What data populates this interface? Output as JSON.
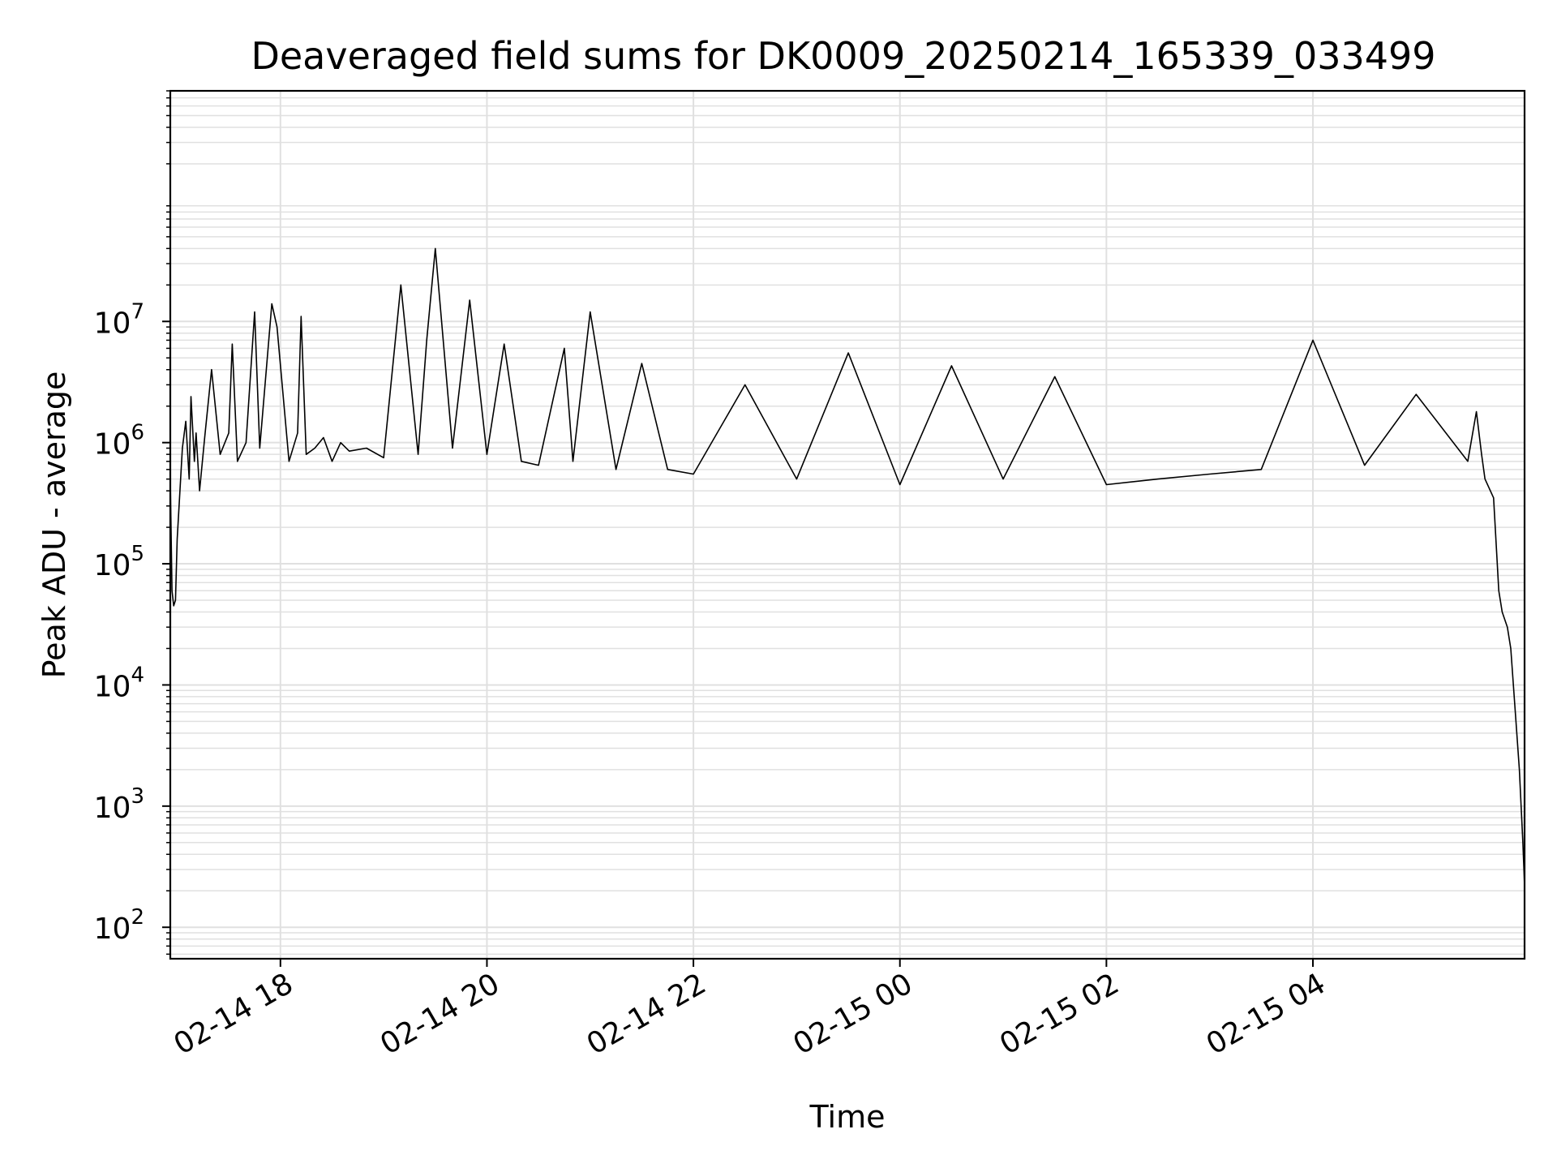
{
  "chart_data": {
    "type": "line",
    "title": "Deaveraged field sums for DK0009_20250214_165339_033499",
    "xlabel": "Time",
    "ylabel": "Peak ADU - average",
    "yscale": "log",
    "ylim": [
      55,
      800000000
    ],
    "xlim": [
      "2025-02-14 16:56",
      "2025-02-15 06:03"
    ],
    "grid": true,
    "line_color": "#000000",
    "grid_color": "#e0e0e0",
    "x_ticks": [
      "2025-02-14 18:00",
      "2025-02-14 20:00",
      "2025-02-14 22:00",
      "2025-02-15 00:00",
      "2025-02-15 02:00",
      "2025-02-15 04:00"
    ],
    "x_tick_labels": [
      "02-14 18",
      "02-14 20",
      "02-14 22",
      "02-15 00",
      "02-15 02",
      "02-15 04"
    ],
    "y_ticks": [
      100,
      1000,
      10000,
      100000,
      1000000,
      10000000
    ],
    "y_tick_labels": [
      {
        "base": "10",
        "exp": "2"
      },
      {
        "base": "10",
        "exp": "3"
      },
      {
        "base": "10",
        "exp": "4"
      },
      {
        "base": "10",
        "exp": "5"
      },
      {
        "base": "10",
        "exp": "6"
      },
      {
        "base": "10",
        "exp": "7"
      }
    ],
    "series": [
      {
        "x": [
          "2025-02-14 16:56",
          "2025-02-14 16:57",
          "2025-02-14 16:58",
          "2025-02-14 16:59",
          "2025-02-14 17:00",
          "2025-02-14 17:03",
          "2025-02-14 17:05",
          "2025-02-14 17:07",
          "2025-02-14 17:08",
          "2025-02-14 17:10",
          "2025-02-14 17:11",
          "2025-02-14 17:13",
          "2025-02-14 17:16",
          "2025-02-14 17:20",
          "2025-02-14 17:25",
          "2025-02-14 17:30",
          "2025-02-14 17:32",
          "2025-02-14 17:35",
          "2025-02-14 17:40",
          "2025-02-14 17:45",
          "2025-02-14 17:48",
          "2025-02-14 17:55",
          "2025-02-14 17:58",
          "2025-02-14 18:05",
          "2025-02-14 18:10",
          "2025-02-14 18:12",
          "2025-02-14 18:15",
          "2025-02-14 18:20",
          "2025-02-14 18:25",
          "2025-02-14 18:30",
          "2025-02-14 18:35",
          "2025-02-14 18:40",
          "2025-02-14 18:50",
          "2025-02-14 19:00",
          "2025-02-14 19:10",
          "2025-02-14 19:20",
          "2025-02-14 19:25",
          "2025-02-14 19:30",
          "2025-02-14 19:40",
          "2025-02-14 19:50",
          "2025-02-14 20:00",
          "2025-02-14 20:10",
          "2025-02-14 20:20",
          "2025-02-14 20:30",
          "2025-02-14 20:45",
          "2025-02-14 20:50",
          "2025-02-14 21:00",
          "2025-02-14 21:15",
          "2025-02-14 21:30",
          "2025-02-14 21:45",
          "2025-02-14 22:00",
          "2025-02-14 22:30",
          "2025-02-14 23:00",
          "2025-02-14 23:30",
          "2025-02-15 00:00",
          "2025-02-15 00:30",
          "2025-02-15 01:00",
          "2025-02-15 01:30",
          "2025-02-15 02:00",
          "2025-02-15 02:30",
          "2025-02-15 03:00",
          "2025-02-15 03:30",
          "2025-02-15 04:00",
          "2025-02-15 04:30",
          "2025-02-15 05:00",
          "2025-02-15 05:30",
          "2025-02-15 05:35",
          "2025-02-15 05:38",
          "2025-02-15 05:40",
          "2025-02-15 05:45",
          "2025-02-15 05:48",
          "2025-02-15 05:50",
          "2025-02-15 05:53",
          "2025-02-15 05:55",
          "2025-02-15 05:58",
          "2025-02-15 06:00",
          "2025-02-15 06:02",
          "2025-02-15 06:03"
        ],
        "y": [
          500000,
          60000,
          45000,
          50000,
          160000,
          900000,
          1500000,
          500000,
          2400000,
          700000,
          1200000,
          400000,
          1100000,
          4000000,
          800000,
          1200000,
          6500000,
          700000,
          1000000,
          12000000,
          900000,
          14000000,
          9000000,
          700000,
          1200000,
          11000000,
          800000,
          900000,
          1100000,
          700000,
          1000000,
          850000,
          900000,
          750000,
          20000000,
          800000,
          7000000,
          40000000,
          900000,
          15000000,
          800000,
          6500000,
          700000,
          650000,
          6000000,
          700000,
          12000000,
          600000,
          4500000,
          600000,
          550000,
          3000000,
          500000,
          5500000,
          450000,
          4300000,
          500000,
          3500000,
          450000,
          500000,
          550000,
          600000,
          7000000,
          650000,
          2500000,
          700000,
          1800000,
          800000,
          500000,
          350000,
          60000,
          40000,
          30000,
          20000,
          5000,
          2000,
          500,
          220
        ]
      }
    ]
  }
}
